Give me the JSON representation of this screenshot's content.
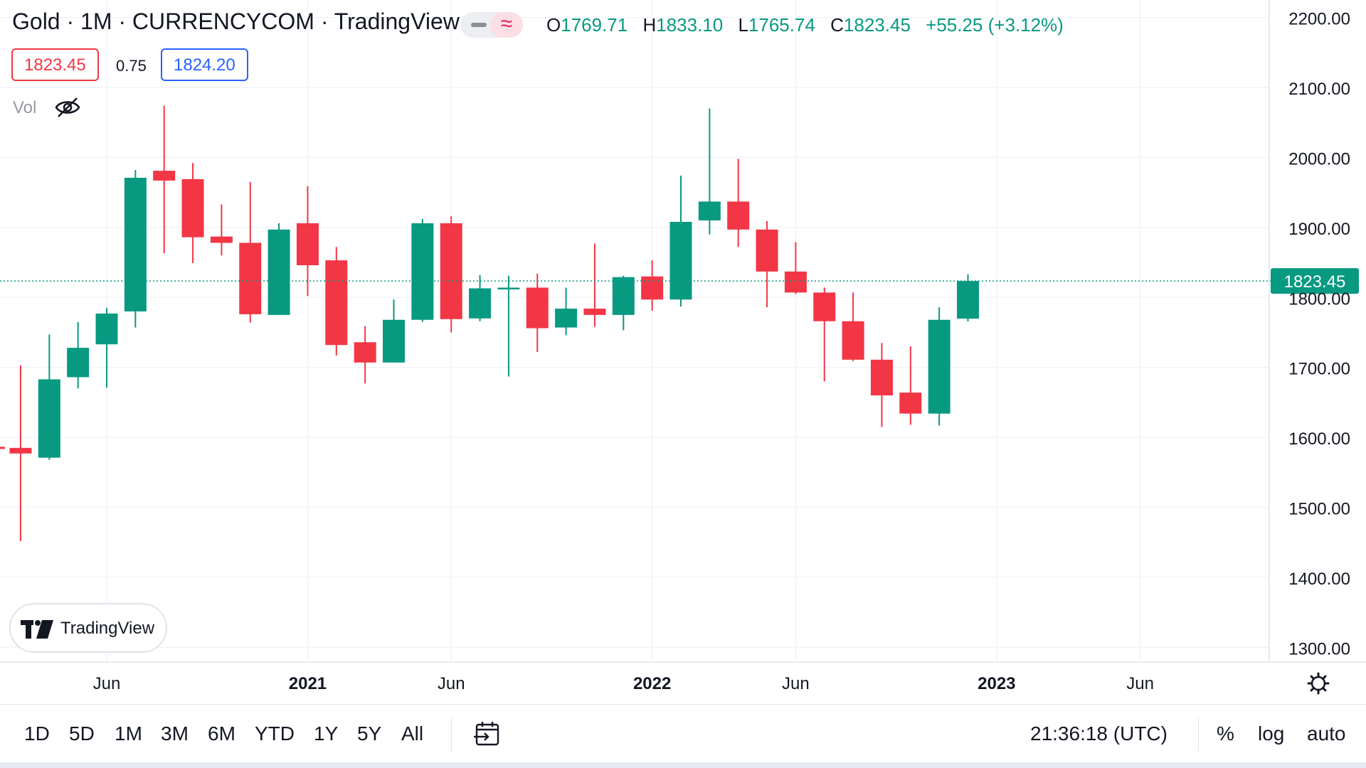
{
  "header": {
    "title": "Gold · 1M · CURRENCYCOM · TradingView",
    "ohlc": {
      "o_label": "O",
      "o_value": "1769.71",
      "h_label": "H",
      "h_value": "1833.10",
      "l_label": "L",
      "l_value": "1765.74",
      "c_label": "C",
      "c_value": "1823.45",
      "change": "+55.25 (+3.12%)"
    },
    "bid": "1823.45",
    "spread": "0.75",
    "ask": "1824.20",
    "vol_label": "Vol"
  },
  "logo_text": "TradingView",
  "chart_data": {
    "type": "candlestick",
    "interval": "1M",
    "y_axis": {
      "ticks": [
        "2200.00",
        "2100.00",
        "2000.00",
        "1900.00",
        "1800.00",
        "1700.00",
        "1600.00",
        "1500.00",
        "1400.00",
        "1300.00"
      ],
      "range": [
        1280,
        2225
      ]
    },
    "x_axis": {
      "ticks": [
        {
          "label": "Jun",
          "month": "2020-06",
          "bold": false
        },
        {
          "label": "2021",
          "month": "2021-01",
          "bold": true
        },
        {
          "label": "Jun",
          "month": "2021-06",
          "bold": false
        },
        {
          "label": "2022",
          "month": "2022-01",
          "bold": true
        },
        {
          "label": "Jun",
          "month": "2022-06",
          "bold": false
        },
        {
          "label": "2023",
          "month": "2023-01",
          "bold": true
        },
        {
          "label": "Jun",
          "month": "2023-06",
          "bold": false
        }
      ]
    },
    "last_price": "1823.45",
    "candles": [
      {
        "month": "2020-03",
        "o": 1585,
        "h": 1703,
        "l": 1452,
        "c": 1577
      },
      {
        "month": "2020-04",
        "o": 1571,
        "h": 1747,
        "l": 1568,
        "c": 1683
      },
      {
        "month": "2020-05",
        "o": 1686,
        "h": 1765,
        "l": 1670,
        "c": 1728
      },
      {
        "month": "2020-06",
        "o": 1733,
        "h": 1785,
        "l": 1671,
        "c": 1777
      },
      {
        "month": "2020-07",
        "o": 1780,
        "h": 1982,
        "l": 1757,
        "c": 1971
      },
      {
        "month": "2020-08",
        "o": 1981,
        "h": 2074,
        "l": 1863,
        "c": 1967
      },
      {
        "month": "2020-09",
        "o": 1969,
        "h": 1992,
        "l": 1849,
        "c": 1886
      },
      {
        "month": "2020-10",
        "o": 1887,
        "h": 1933,
        "l": 1860,
        "c": 1878
      },
      {
        "month": "2020-11",
        "o": 1878,
        "h": 1965,
        "l": 1764,
        "c": 1776
      },
      {
        "month": "2020-12",
        "o": 1775,
        "h": 1906,
        "l": 1775,
        "c": 1897
      },
      {
        "month": "2021-01",
        "o": 1906,
        "h": 1959,
        "l": 1802,
        "c": 1846
      },
      {
        "month": "2021-02",
        "o": 1853,
        "h": 1872,
        "l": 1717,
        "c": 1732
      },
      {
        "month": "2021-03",
        "o": 1736,
        "h": 1759,
        "l": 1677,
        "c": 1707
      },
      {
        "month": "2021-04",
        "o": 1707,
        "h": 1797,
        "l": 1707,
        "c": 1768
      },
      {
        "month": "2021-05",
        "o": 1768,
        "h": 1912,
        "l": 1765,
        "c": 1906
      },
      {
        "month": "2021-06",
        "o": 1906,
        "h": 1916,
        "l": 1750,
        "c": 1769
      },
      {
        "month": "2021-07",
        "o": 1770,
        "h": 1832,
        "l": 1766,
        "c": 1813
      },
      {
        "month": "2021-08",
        "o": 1814,
        "h": 1831,
        "l": 1687,
        "c": 1814
      },
      {
        "month": "2021-09",
        "o": 1814,
        "h": 1834,
        "l": 1722,
        "c": 1756
      },
      {
        "month": "2021-10",
        "o": 1757,
        "h": 1814,
        "l": 1746,
        "c": 1784
      },
      {
        "month": "2021-11",
        "o": 1784,
        "h": 1877,
        "l": 1758,
        "c": 1775
      },
      {
        "month": "2021-12",
        "o": 1775,
        "h": 1831,
        "l": 1753,
        "c": 1829
      },
      {
        "month": "2022-01",
        "o": 1830,
        "h": 1853,
        "l": 1781,
        "c": 1797
      },
      {
        "month": "2022-02",
        "o": 1797,
        "h": 1974,
        "l": 1787,
        "c": 1908
      },
      {
        "month": "2022-03",
        "o": 1910,
        "h": 2070,
        "l": 1890,
        "c": 1937
      },
      {
        "month": "2022-04",
        "o": 1937,
        "h": 1998,
        "l": 1872,
        "c": 1897
      },
      {
        "month": "2022-05",
        "o": 1897,
        "h": 1909,
        "l": 1786,
        "c": 1837
      },
      {
        "month": "2022-06",
        "o": 1837,
        "h": 1879,
        "l": 1805,
        "c": 1807
      },
      {
        "month": "2022-07",
        "o": 1807,
        "h": 1814,
        "l": 1680,
        "c": 1766
      },
      {
        "month": "2022-08",
        "o": 1766,
        "h": 1807,
        "l": 1709,
        "c": 1711
      },
      {
        "month": "2022-09",
        "o": 1711,
        "h": 1735,
        "l": 1615,
        "c": 1660
      },
      {
        "month": "2022-10",
        "o": 1664,
        "h": 1730,
        "l": 1618,
        "c": 1634
      },
      {
        "month": "2022-11",
        "o": 1634,
        "h": 1786,
        "l": 1617,
        "c": 1768
      },
      {
        "month": "2022-12",
        "o": 1769.71,
        "h": 1833.1,
        "l": 1765.74,
        "c": 1823.45
      }
    ]
  },
  "toolbar": {
    "ranges": [
      "1D",
      "5D",
      "1M",
      "3M",
      "6M",
      "YTD",
      "1Y",
      "5Y",
      "All"
    ],
    "clock": "21:36:18 (UTC)",
    "options": [
      "%",
      "log",
      "auto"
    ]
  },
  "colors": {
    "up": "#089981",
    "down": "#f23645",
    "grid": "#f0f3fa",
    "text": "#131722"
  }
}
